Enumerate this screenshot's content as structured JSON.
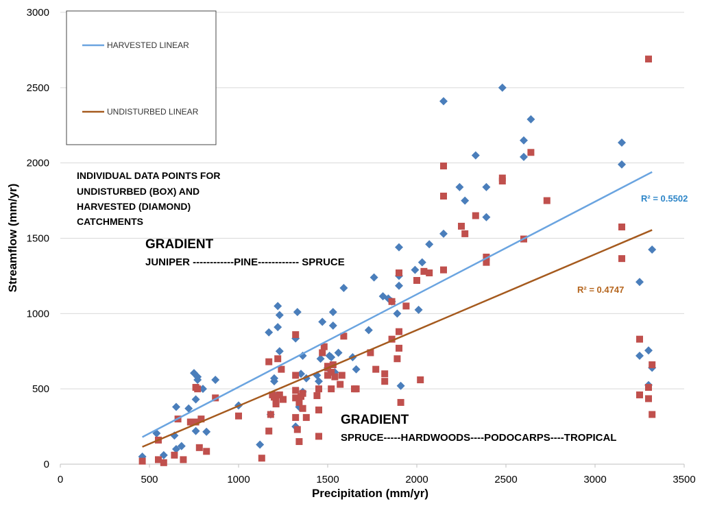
{
  "chart_data": {
    "type": "scatter",
    "title": "",
    "xlabel": "Precipitation (mm/yr)",
    "ylabel": "Streamflow (mm/yr)",
    "xlim": [
      0,
      3500
    ],
    "ylim": [
      0,
      3000
    ],
    "x_ticks": [
      "0",
      "500",
      "1000",
      "1500",
      "2000",
      "2500",
      "3000",
      "3500"
    ],
    "y_ticks": [
      "0",
      "500",
      "1000",
      "1500",
      "2000",
      "2500",
      "3000"
    ],
    "grid": "horizontal",
    "colors": {
      "harvested": "#4a7ebb",
      "undisturbed": "#c0504d",
      "harvested_line": "#6aa4e0",
      "undisturbed_line": "#a55a1e",
      "r2_harvested": "#2e86c8",
      "r2_undisturbed": "#b5651d"
    },
    "legend": {
      "position": "top-left",
      "entries": [
        "HARVESTED LINEAR",
        "UNDISTURBED LINEAR"
      ]
    },
    "series": [
      {
        "name": "Harvested (diamond)",
        "marker": "diamond",
        "points": [
          [
            460,
            50
          ],
          [
            540,
            205
          ],
          [
            580,
            60
          ],
          [
            640,
            190
          ],
          [
            650,
            380
          ],
          [
            650,
            100
          ],
          [
            680,
            120
          ],
          [
            720,
            370
          ],
          [
            750,
            605
          ],
          [
            760,
            430
          ],
          [
            770,
            580
          ],
          [
            770,
            560
          ],
          [
            760,
            220
          ],
          [
            800,
            500
          ],
          [
            820,
            215
          ],
          [
            870,
            560
          ],
          [
            1000,
            390
          ],
          [
            1120,
            130
          ],
          [
            1170,
            875
          ],
          [
            1180,
            330
          ],
          [
            1200,
            570
          ],
          [
            1200,
            550
          ],
          [
            1210,
            450
          ],
          [
            1220,
            910
          ],
          [
            1220,
            1050
          ],
          [
            1230,
            750
          ],
          [
            1230,
            990
          ],
          [
            1320,
            250
          ],
          [
            1320,
            835
          ],
          [
            1330,
            1010
          ],
          [
            1340,
            380
          ],
          [
            1350,
            600
          ],
          [
            1360,
            720
          ],
          [
            1360,
            480
          ],
          [
            1380,
            570
          ],
          [
            1440,
            590
          ],
          [
            1450,
            550
          ],
          [
            1460,
            700
          ],
          [
            1470,
            945
          ],
          [
            1500,
            640
          ],
          [
            1510,
            720
          ],
          [
            1520,
            710
          ],
          [
            1530,
            1010
          ],
          [
            1530,
            920
          ],
          [
            1540,
            610
          ],
          [
            1560,
            740
          ],
          [
            1590,
            1170
          ],
          [
            1640,
            710
          ],
          [
            1660,
            630
          ],
          [
            1730,
            890
          ],
          [
            1760,
            1240
          ],
          [
            1810,
            1115
          ],
          [
            1840,
            1100
          ],
          [
            1860,
            1080
          ],
          [
            1890,
            1000
          ],
          [
            1900,
            1185
          ],
          [
            1900,
            1250
          ],
          [
            1900,
            1440
          ],
          [
            1910,
            520
          ],
          [
            1990,
            1290
          ],
          [
            2010,
            1025
          ],
          [
            2030,
            1340
          ],
          [
            2070,
            1460
          ],
          [
            2150,
            2410
          ],
          [
            2150,
            1530
          ],
          [
            2240,
            1840
          ],
          [
            2270,
            1750
          ],
          [
            2330,
            2050
          ],
          [
            2390,
            1840
          ],
          [
            2390,
            1640
          ],
          [
            2480,
            2500
          ],
          [
            2600,
            2150
          ],
          [
            2600,
            2040
          ],
          [
            2640,
            2290
          ],
          [
            3150,
            2135
          ],
          [
            3150,
            1990
          ],
          [
            3250,
            1210
          ],
          [
            3300,
            755
          ],
          [
            3300,
            525
          ],
          [
            3320,
            640
          ],
          [
            3320,
            1425
          ],
          [
            3250,
            720
          ]
        ]
      },
      {
        "name": "Undisturbed (box)",
        "marker": "square",
        "points": [
          [
            460,
            20
          ],
          [
            550,
            160
          ],
          [
            550,
            30
          ],
          [
            580,
            10
          ],
          [
            640,
            60
          ],
          [
            660,
            300
          ],
          [
            690,
            30
          ],
          [
            730,
            280
          ],
          [
            760,
            280
          ],
          [
            760,
            510
          ],
          [
            770,
            500
          ],
          [
            780,
            110
          ],
          [
            790,
            300
          ],
          [
            820,
            85
          ],
          [
            870,
            440
          ],
          [
            1000,
            320
          ],
          [
            1130,
            40
          ],
          [
            1170,
            680
          ],
          [
            1170,
            220
          ],
          [
            1180,
            330
          ],
          [
            1190,
            460
          ],
          [
            1200,
            445
          ],
          [
            1210,
            420
          ],
          [
            1210,
            400
          ],
          [
            1220,
            700
          ],
          [
            1230,
            460
          ],
          [
            1240,
            630
          ],
          [
            1250,
            430
          ],
          [
            1320,
            310
          ],
          [
            1320,
            590
          ],
          [
            1320,
            860
          ],
          [
            1320,
            440
          ],
          [
            1320,
            490
          ],
          [
            1330,
            230
          ],
          [
            1340,
            150
          ],
          [
            1340,
            410
          ],
          [
            1350,
            450
          ],
          [
            1360,
            370
          ],
          [
            1360,
            470
          ],
          [
            1380,
            310
          ],
          [
            1440,
            455
          ],
          [
            1450,
            500
          ],
          [
            1450,
            360
          ],
          [
            1450,
            185
          ],
          [
            1470,
            740
          ],
          [
            1480,
            780
          ],
          [
            1500,
            640
          ],
          [
            1500,
            590
          ],
          [
            1500,
            650
          ],
          [
            1520,
            500
          ],
          [
            1520,
            610
          ],
          [
            1530,
            660
          ],
          [
            1540,
            580
          ],
          [
            1570,
            530
          ],
          [
            1580,
            590
          ],
          [
            1590,
            850
          ],
          [
            1650,
            500
          ],
          [
            1660,
            500
          ],
          [
            1740,
            740
          ],
          [
            1770,
            630
          ],
          [
            1820,
            600
          ],
          [
            1820,
            550
          ],
          [
            1860,
            830
          ],
          [
            1860,
            1080
          ],
          [
            1890,
            700
          ],
          [
            1900,
            880
          ],
          [
            1900,
            770
          ],
          [
            1900,
            1270
          ],
          [
            1910,
            410
          ],
          [
            1940,
            1050
          ],
          [
            2000,
            1220
          ],
          [
            2020,
            560
          ],
          [
            2040,
            1280
          ],
          [
            2070,
            1270
          ],
          [
            2150,
            1290
          ],
          [
            2150,
            1780
          ],
          [
            2150,
            1980
          ],
          [
            2250,
            1580
          ],
          [
            2270,
            1530
          ],
          [
            2330,
            1650
          ],
          [
            2390,
            1375
          ],
          [
            2390,
            1340
          ],
          [
            2480,
            1900
          ],
          [
            2480,
            1880
          ],
          [
            2600,
            1495
          ],
          [
            2640,
            2070
          ],
          [
            2730,
            1750
          ],
          [
            3150,
            1575
          ],
          [
            3150,
            1365
          ],
          [
            3250,
            830
          ],
          [
            3250,
            460
          ],
          [
            3300,
            2690
          ],
          [
            3300,
            510
          ],
          [
            3300,
            435
          ],
          [
            3320,
            660
          ],
          [
            3320,
            330
          ]
        ]
      }
    ],
    "trendlines": [
      {
        "name": "HARVESTED LINEAR",
        "x": [
          460,
          3320
        ],
        "y": [
          180,
          1940
        ],
        "r2_label": "R² = 0.5502"
      },
      {
        "name": "UNDISTURBED LINEAR",
        "x": [
          460,
          3320
        ],
        "y": [
          115,
          1555
        ],
        "r2_label": "R² = 0.4747"
      }
    ],
    "annotations": {
      "note_lines": [
        "INDIVIDUAL DATA POINTS FOR",
        "UNDISTURBED (BOX) AND",
        "HARVESTED (DIAMOND)",
        "CATCHMENTS"
      ],
      "gradient1_title": "GRADIENT",
      "gradient1_text": "JUNIPER ------------PINE------------ SPRUCE",
      "gradient2_title": "GRADIENT",
      "gradient2_text": "SPRUCE-----HARDWOODS----PODOCARPS----TROPICAL"
    }
  }
}
